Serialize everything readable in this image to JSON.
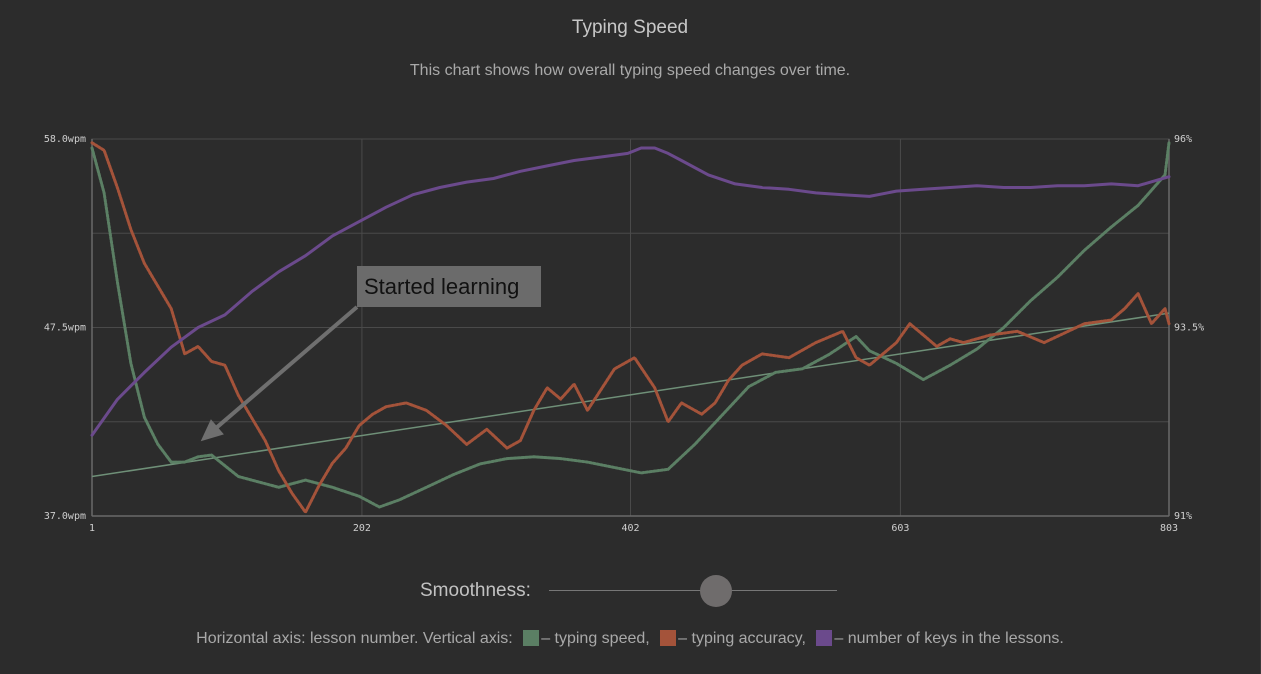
{
  "header": {
    "title": "Typing Speed",
    "subtitle": "This chart shows how overall typing speed changes over time."
  },
  "chart_data": {
    "type": "line",
    "xlim": [
      1,
      803
    ],
    "x_ticks": [
      "1",
      "202",
      "402",
      "603",
      "803"
    ],
    "y_left": {
      "ylim": [
        37.0,
        58.0
      ],
      "ticks": [
        "37.0wpm",
        "47.5wpm",
        "58.0wpm"
      ]
    },
    "y_right": {
      "ylim": [
        91,
        96
      ],
      "ticks": [
        "91%",
        "93.5%",
        "96%"
      ]
    },
    "grid": true,
    "colors": {
      "speed": "#5b7f64",
      "accuracy": "#a4533a",
      "keys": "#6b4a8c",
      "trend": "#6f9078"
    },
    "series": [
      {
        "key": "speed",
        "axis": "left",
        "x": [
          1,
          10,
          20,
          30,
          40,
          50,
          60,
          70,
          80,
          90,
          100,
          110,
          120,
          140,
          160,
          180,
          200,
          215,
          230,
          250,
          270,
          290,
          310,
          330,
          350,
          370,
          390,
          410,
          430,
          450,
          470,
          490,
          510,
          530,
          550,
          570,
          580,
          600,
          620,
          640,
          660,
          680,
          700,
          720,
          740,
          760,
          780,
          800,
          803
        ],
        "values": [
          57.5,
          55.0,
          50.0,
          45.5,
          42.5,
          41.0,
          40.0,
          40.0,
          40.3,
          40.4,
          39.8,
          39.2,
          39.0,
          38.6,
          39.0,
          38.6,
          38.1,
          37.5,
          37.9,
          38.6,
          39.3,
          39.9,
          40.2,
          40.3,
          40.2,
          40.0,
          39.7,
          39.4,
          39.6,
          41.0,
          42.6,
          44.2,
          45.0,
          45.2,
          46.0,
          47.0,
          46.2,
          45.5,
          44.6,
          45.4,
          46.3,
          47.5,
          49.0,
          50.3,
          51.8,
          53.1,
          54.3,
          56.0,
          57.8
        ]
      },
      {
        "key": "accuracy",
        "axis": "right",
        "x": [
          1,
          10,
          20,
          30,
          40,
          50,
          60,
          70,
          80,
          90,
          100,
          110,
          120,
          130,
          140,
          150,
          160,
          170,
          180,
          190,
          200,
          210,
          220,
          235,
          250,
          265,
          280,
          295,
          310,
          320,
          330,
          340,
          350,
          360,
          370,
          390,
          405,
          420,
          430,
          440,
          455,
          465,
          475,
          485,
          500,
          520,
          540,
          560,
          570,
          580,
          600,
          610,
          620,
          630,
          640,
          650,
          670,
          690,
          710,
          740,
          760,
          770,
          780,
          790,
          800,
          803
        ],
        "values": [
          95.95,
          95.85,
          95.35,
          94.8,
          94.35,
          94.05,
          93.75,
          93.15,
          93.25,
          93.05,
          93.0,
          92.6,
          92.3,
          92.0,
          91.6,
          91.3,
          91.05,
          91.4,
          91.7,
          91.9,
          92.2,
          92.35,
          92.45,
          92.5,
          92.4,
          92.2,
          91.95,
          92.15,
          91.9,
          92.0,
          92.4,
          92.7,
          92.55,
          92.75,
          92.4,
          92.95,
          93.1,
          92.7,
          92.25,
          92.5,
          92.35,
          92.5,
          92.8,
          93.0,
          93.15,
          93.1,
          93.3,
          93.45,
          93.1,
          93.0,
          93.3,
          93.55,
          93.4,
          93.25,
          93.35,
          93.3,
          93.4,
          93.45,
          93.3,
          93.55,
          93.6,
          93.75,
          93.95,
          93.55,
          93.75,
          93.55
        ]
      },
      {
        "key": "keys",
        "axis": "left",
        "x": [
          1,
          20,
          40,
          60,
          80,
          100,
          120,
          140,
          160,
          180,
          200,
          220,
          240,
          260,
          280,
          300,
          320,
          340,
          360,
          380,
          400,
          410,
          420,
          430,
          440,
          460,
          480,
          500,
          520,
          540,
          560,
          580,
          600,
          620,
          640,
          660,
          680,
          700,
          720,
          740,
          760,
          780,
          803
        ],
        "values": [
          41.5,
          43.5,
          45.0,
          46.4,
          47.5,
          48.2,
          49.5,
          50.6,
          51.5,
          52.6,
          53.4,
          54.2,
          54.9,
          55.3,
          55.6,
          55.8,
          56.2,
          56.5,
          56.8,
          57.0,
          57.2,
          57.5,
          57.5,
          57.2,
          56.8,
          56.0,
          55.5,
          55.3,
          55.2,
          55.0,
          54.9,
          54.8,
          55.1,
          55.2,
          55.3,
          55.4,
          55.3,
          55.3,
          55.4,
          55.4,
          55.5,
          55.4,
          55.9
        ]
      }
    ],
    "trendline": {
      "series": "speed",
      "x": [
        1,
        803
      ],
      "values": [
        39.2,
        48.3
      ]
    },
    "annotation": {
      "text": "Started learning",
      "points_to": {
        "x": 73,
        "y": 41.0
      }
    },
    "xlabel": "lesson number",
    "ylabel": "typing speed"
  },
  "controls": {
    "smoothness_label": "Smoothness:",
    "smoothness_value": 0.58
  },
  "footnote": {
    "prefix": "Horizontal axis: lesson number. Vertical axis:",
    "speed": "– typing speed,",
    "accuracy": "– typing accuracy,",
    "keys": "– number of keys in the lessons."
  }
}
